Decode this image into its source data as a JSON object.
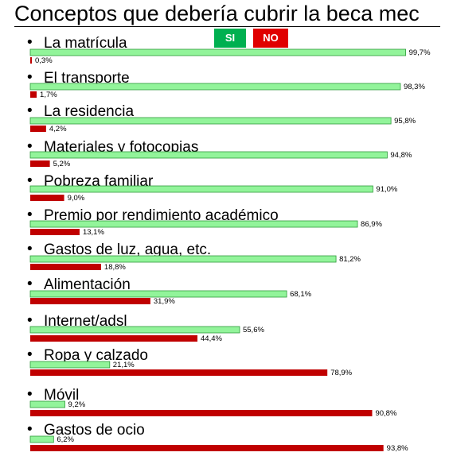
{
  "title": "Conceptos que debería cubrir la beca mec",
  "legend": [
    {
      "name": "SI",
      "color": "#00b050"
    },
    {
      "name": "NO",
      "color": "#e00000"
    }
  ],
  "colors": {
    "si_fill": "#92f49a",
    "si_stroke": "#2e9a3a",
    "no_fill": "#c00000"
  },
  "chart_data": {
    "type": "bar",
    "orientation": "horizontal",
    "title": "Conceptos que debería cubrir la beca mec",
    "categories": [
      "La matrícula",
      "El transporte",
      "La residencia",
      "Materiales y fotocopias",
      "Pobreza familiar",
      "Premio por rendimiento académico",
      "Gastos de luz, agua, etc.",
      "Alimentación",
      "Internet/adsl",
      "Ropa y calzado",
      "Móvil",
      "Gastos de ocio"
    ],
    "series": [
      {
        "name": "SI",
        "values": [
          99.7,
          98.3,
          95.8,
          94.8,
          91.0,
          86.9,
          81.2,
          68.1,
          55.6,
          21.1,
          9.2,
          6.2
        ]
      },
      {
        "name": "NO",
        "values": [
          0.3,
          1.7,
          4.2,
          5.2,
          9.0,
          13.1,
          18.8,
          31.9,
          44.4,
          78.9,
          90.8,
          93.8
        ]
      }
    ],
    "value_labels": {
      "SI": [
        "99,7%",
        "98,3%",
        "95,8%",
        "94,8%",
        "91,0%",
        "86,9%",
        "81,2%",
        "68,1%",
        "55,6%",
        "21,1%",
        "9,2%",
        "6,2%"
      ],
      "NO": [
        "0,3%",
        "1,7%",
        "4,2%",
        "5,2%",
        "9,0%",
        "13,1%",
        "18,8%",
        "31,9%",
        "44,4%",
        "78,9%",
        "90,8%",
        "93,8%"
      ]
    },
    "xlim": [
      0,
      100
    ],
    "grid": false,
    "legend_position": "top-right"
  }
}
